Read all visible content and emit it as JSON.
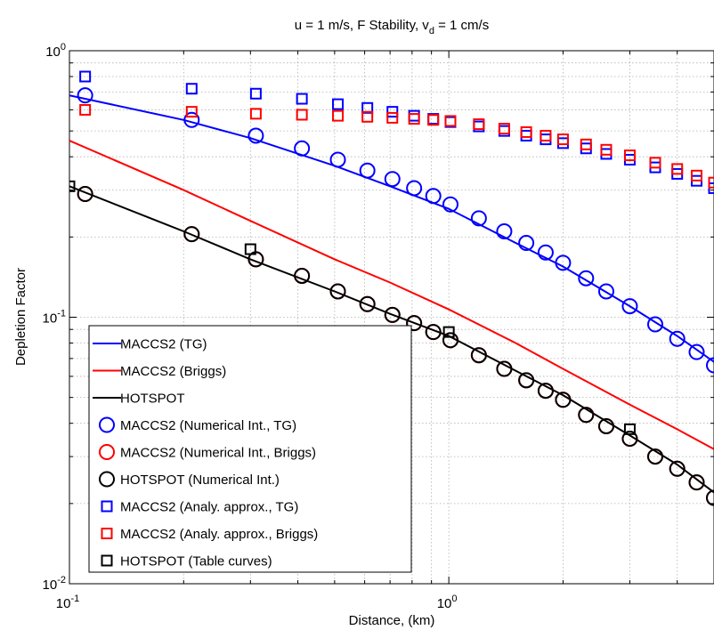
{
  "chart_data": {
    "type": "line+scatter",
    "title": "u = 1 m/s, F Stability, v",
    "title_subscript": "d",
    "title_suffix": " = 1 cm/s",
    "xlabel": "Distance, (km)",
    "ylabel": "Depletion Factor",
    "xscale": "log",
    "yscale": "log",
    "xlim": [
      0.1,
      5
    ],
    "ylim": [
      0.01,
      1
    ],
    "grid": true,
    "legend_position": "lower-left",
    "x_ticks": [
      {
        "value": 0.1,
        "base": "10",
        "exp": "-1"
      },
      {
        "value": 1,
        "base": "10",
        "exp": "0"
      }
    ],
    "y_ticks": [
      {
        "value": 0.01,
        "base": "10",
        "exp": "-2"
      },
      {
        "value": 0.1,
        "base": "10",
        "exp": "-1"
      },
      {
        "value": 1,
        "base": "10",
        "exp": "0"
      }
    ],
    "series": [
      {
        "name": "MACCS2 (TG)",
        "kind": "line",
        "color": "#0000ff",
        "x": [
          0.1,
          0.2,
          0.3,
          0.5,
          0.7,
          1.0,
          1.5,
          2.0,
          3.0,
          4.0,
          5.0
        ],
        "y": [
          0.68,
          0.55,
          0.47,
          0.37,
          0.31,
          0.255,
          0.19,
          0.155,
          0.11,
          0.085,
          0.068
        ]
      },
      {
        "name": "MACCS2 (Briggs)",
        "kind": "line",
        "color": "#ff0000",
        "x": [
          0.1,
          0.2,
          0.3,
          0.5,
          0.7,
          1.0,
          1.5,
          2.0,
          3.0,
          4.0,
          5.0
        ],
        "y": [
          0.46,
          0.3,
          0.23,
          0.165,
          0.135,
          0.107,
          0.08,
          0.064,
          0.047,
          0.038,
          0.032
        ]
      },
      {
        "name": "HOTSPOT",
        "kind": "line",
        "color": "#000000",
        "x": [
          0.1,
          0.2,
          0.3,
          0.5,
          0.7,
          1.0,
          1.5,
          2.0,
          3.0,
          4.0,
          5.0
        ],
        "y": [
          0.31,
          0.21,
          0.165,
          0.125,
          0.103,
          0.085,
          0.063,
          0.051,
          0.036,
          0.028,
          0.022
        ]
      },
      {
        "name": "MACCS2 (Numerical Int., TG)",
        "kind": "circle",
        "color": "#0000ff",
        "x": [
          0.11,
          0.21,
          0.31,
          0.41,
          0.51,
          0.61,
          0.71,
          0.81,
          0.91,
          1.01,
          1.2,
          1.4,
          1.6,
          1.8,
          2.0,
          2.3,
          2.6,
          3.0,
          3.5,
          4.0,
          4.5,
          5.0
        ],
        "y": [
          0.68,
          0.55,
          0.48,
          0.43,
          0.39,
          0.355,
          0.33,
          0.305,
          0.285,
          0.265,
          0.235,
          0.21,
          0.19,
          0.175,
          0.16,
          0.14,
          0.125,
          0.11,
          0.094,
          0.083,
          0.074,
          0.066
        ]
      },
      {
        "name": "MACCS2 (Numerical Int., Briggs)",
        "kind": "circle",
        "color": "#ff0000",
        "x": [
          0.11,
          0.21,
          0.31,
          0.41,
          0.51,
          0.61,
          0.71,
          0.81,
          0.91,
          1.01,
          1.2,
          1.4,
          1.6,
          1.8,
          2.0,
          2.3,
          2.6,
          3.0,
          3.5,
          4.0,
          4.5,
          5.0
        ],
        "y": [
          0.29,
          0.205,
          0.165,
          0.143,
          0.125,
          0.112,
          0.102,
          0.095,
          0.088,
          0.082,
          0.072,
          0.064,
          0.058,
          0.053,
          0.049,
          0.043,
          0.039,
          0.035,
          0.03,
          0.027,
          0.024,
          0.021
        ]
      },
      {
        "name": "HOTSPOT (Numerical Int.)",
        "kind": "circle",
        "color": "#000000",
        "x": [
          0.11,
          0.21,
          0.31,
          0.41,
          0.51,
          0.61,
          0.71,
          0.81,
          0.91,
          1.01,
          1.2,
          1.4,
          1.6,
          1.8,
          2.0,
          2.3,
          2.6,
          3.0,
          3.5,
          4.0,
          4.5,
          5.0
        ],
        "y": [
          0.29,
          0.205,
          0.165,
          0.143,
          0.125,
          0.112,
          0.102,
          0.095,
          0.088,
          0.082,
          0.072,
          0.064,
          0.058,
          0.053,
          0.049,
          0.043,
          0.039,
          0.035,
          0.03,
          0.027,
          0.024,
          0.021
        ]
      },
      {
        "name": "MACCS2 (Analy. approx., TG)",
        "kind": "square",
        "color": "#0000ff",
        "x": [
          0.11,
          0.21,
          0.31,
          0.41,
          0.51,
          0.61,
          0.71,
          0.81,
          0.91,
          1.01,
          1.2,
          1.4,
          1.6,
          1.8,
          2.0,
          2.3,
          2.6,
          3.0,
          3.5,
          4.0,
          4.5,
          5.0
        ],
        "y": [
          0.8,
          0.72,
          0.69,
          0.66,
          0.63,
          0.61,
          0.59,
          0.57,
          0.555,
          0.54,
          0.52,
          0.5,
          0.48,
          0.465,
          0.45,
          0.43,
          0.41,
          0.39,
          0.365,
          0.345,
          0.325,
          0.305
        ]
      },
      {
        "name": "MACCS2 (Analy. approx., Briggs)",
        "kind": "square",
        "color": "#ff0000",
        "x": [
          0.11,
          0.21,
          0.31,
          0.41,
          0.51,
          0.61,
          0.71,
          0.81,
          0.91,
          1.01,
          1.2,
          1.4,
          1.6,
          1.8,
          2.0,
          2.3,
          2.6,
          3.0,
          3.5,
          4.0,
          4.5,
          5.0
        ],
        "y": [
          0.6,
          0.59,
          0.58,
          0.575,
          0.57,
          0.565,
          0.56,
          0.555,
          0.55,
          0.545,
          0.53,
          0.51,
          0.495,
          0.48,
          0.465,
          0.445,
          0.425,
          0.405,
          0.38,
          0.36,
          0.34,
          0.32
        ]
      },
      {
        "name": "HOTSPOT (Table curves)",
        "kind": "square",
        "color": "#000000",
        "x": [
          0.1,
          0.3,
          1.0,
          3.0
        ],
        "y": [
          0.31,
          0.18,
          0.088,
          0.038
        ]
      }
    ]
  }
}
